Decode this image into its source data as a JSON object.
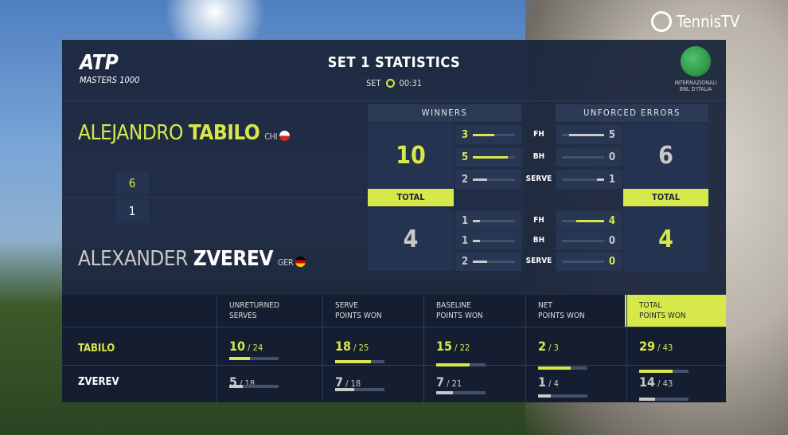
{
  "brand": {
    "tv": "TennisTV",
    "event": "INTERNAZIONALI BNL D'ITALIA",
    "atp": "ATP",
    "masters": "MASTERS 1000"
  },
  "header": {
    "title": "SET 1 STATISTICS",
    "set_label": "SET",
    "time": "00:31"
  },
  "colors": {
    "accent": "#d7e84a",
    "panel": "#1b263c"
  },
  "players": [
    {
      "first": "ALEJANDRO",
      "last": "TABILO",
      "country": "CHI",
      "set_score": "6",
      "short": "TABILO"
    },
    {
      "first": "ALEXANDER",
      "last": "ZVEREV",
      "country": "GER",
      "set_score": "1",
      "short": "ZVEREV"
    }
  ],
  "winners": {
    "label": "WINNERS",
    "total_label": "TOTAL",
    "totals": [
      "10",
      "4"
    ],
    "rows": [
      [
        "3",
        "5",
        "2"
      ],
      [
        "1",
        "1",
        "2"
      ]
    ]
  },
  "unforced": {
    "label": "UNFORCED ERRORS",
    "total_label": "TOTAL",
    "totals": [
      "6",
      "4"
    ],
    "rows": [
      [
        "5",
        "0",
        "1"
      ],
      [
        "4",
        "0",
        "0"
      ]
    ]
  },
  "shot_labels": [
    "FH",
    "BH",
    "SERVE"
  ],
  "table": {
    "headers": [
      [
        "UNRETURNED",
        "SERVES"
      ],
      [
        "SERVE",
        "POINTS WON"
      ],
      [
        "BASELINE",
        "POINTS WON"
      ],
      [
        "NET",
        "POINTS WON"
      ],
      [
        "TOTAL",
        "POINTS WON"
      ]
    ],
    "rows": [
      {
        "cells": [
          [
            "10",
            "24"
          ],
          [
            "18",
            "25"
          ],
          [
            "15",
            "22"
          ],
          [
            "2",
            "3"
          ],
          [
            "29",
            "43"
          ]
        ]
      },
      {
        "cells": [
          [
            "5",
            "18"
          ],
          [
            "7",
            "18"
          ],
          [
            "7",
            "21"
          ],
          [
            "1",
            "4"
          ],
          [
            "14",
            "43"
          ]
        ]
      }
    ]
  }
}
